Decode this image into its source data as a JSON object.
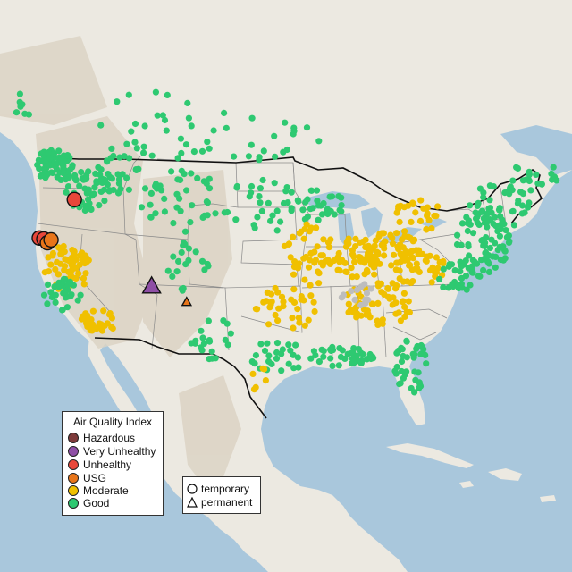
{
  "legend": {
    "title": "Air Quality Index",
    "items": [
      {
        "label": "Hazardous",
        "color": "#7e3a3a"
      },
      {
        "label": "Very Unhealthy",
        "color": "#8e4fa5"
      },
      {
        "label": "Unhealthy",
        "color": "#e8473a"
      },
      {
        "label": "USG",
        "color": "#e8751a"
      },
      {
        "label": "Moderate",
        "color": "#f0c000"
      },
      {
        "label": "Good",
        "color": "#2ec971"
      }
    ]
  },
  "shape_legend": {
    "items": [
      {
        "label": "temporary",
        "shape": "circle-icon"
      },
      {
        "label": "permanent",
        "shape": "triangle-icon"
      }
    ]
  },
  "colors": {
    "water": "#a9c7dc",
    "land": "#ece9e1",
    "terrain": "#dcd3c4",
    "border": "#111111",
    "no_data": "#bdbdbd"
  },
  "chart_data": {
    "type": "scatter",
    "title": "",
    "stations": [
      {
        "lon": -124.1,
        "lat": 40.4,
        "aqi": "Unhealthy",
        "station": "temporary"
      },
      {
        "lon": -123.6,
        "lat": 40.3,
        "aqi": "Unhealthy",
        "station": "temporary"
      },
      {
        "lon": -123.2,
        "lat": 39.9,
        "aqi": "USG",
        "station": "temporary"
      },
      {
        "lon": -122.8,
        "lat": 40.2,
        "aqi": "USG",
        "station": "temporary"
      },
      {
        "lon": -120.2,
        "lat": 44.5,
        "aqi": "Unhealthy",
        "station": "temporary"
      },
      {
        "lon": -111.6,
        "lat": 35.3,
        "aqi": "Very Unhealthy",
        "station": "permanent"
      },
      {
        "lon": -107.7,
        "lat": 33.6,
        "aqi": "USG",
        "station": "permanent"
      }
    ]
  }
}
